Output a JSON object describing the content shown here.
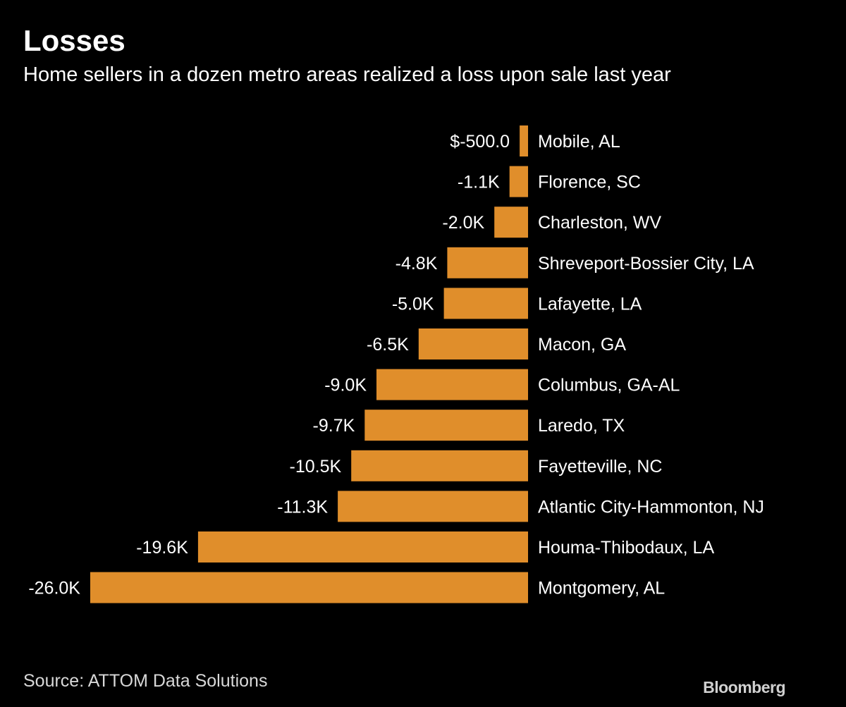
{
  "chart_data": {
    "type": "bar",
    "orientation": "horizontal",
    "title": "Losses",
    "subtitle": "Home sellers in a dozen metro areas realized a loss upon sale last year",
    "categories": [
      "Mobile, AL",
      "Florence, SC",
      "Charleston, WV",
      "Shreveport-Bossier City, LA",
      "Lafayette, LA",
      "Macon, GA",
      "Columbus, GA-AL",
      "Laredo, TX",
      "Fayetteville, NC",
      "Atlantic City-Hammonton, NJ",
      "Houma-Thibodaux, LA",
      "Montgomery, AL"
    ],
    "values": [
      -500,
      -1100,
      -2000,
      -4800,
      -5000,
      -6500,
      -9000,
      -9700,
      -10500,
      -11300,
      -19600,
      -26000
    ],
    "data_labels": [
      "$-500.0",
      "-1.1K",
      "-2.0K",
      "-4.8K",
      "-5.0K",
      "-6.5K",
      "-9.0K",
      "-9.7K",
      "-10.5K",
      "-11.3K",
      "-19.6K",
      "-26.0K"
    ],
    "xlim": [
      -26000,
      0
    ],
    "bar_color": "#e08e2b",
    "grid": false,
    "legend": "none"
  },
  "source": "Source: ATTOM Data Solutions",
  "brand": "Bloomberg",
  "colors": {
    "background": "#000000",
    "text": "#ffffff",
    "bar": "#e08e2b"
  }
}
